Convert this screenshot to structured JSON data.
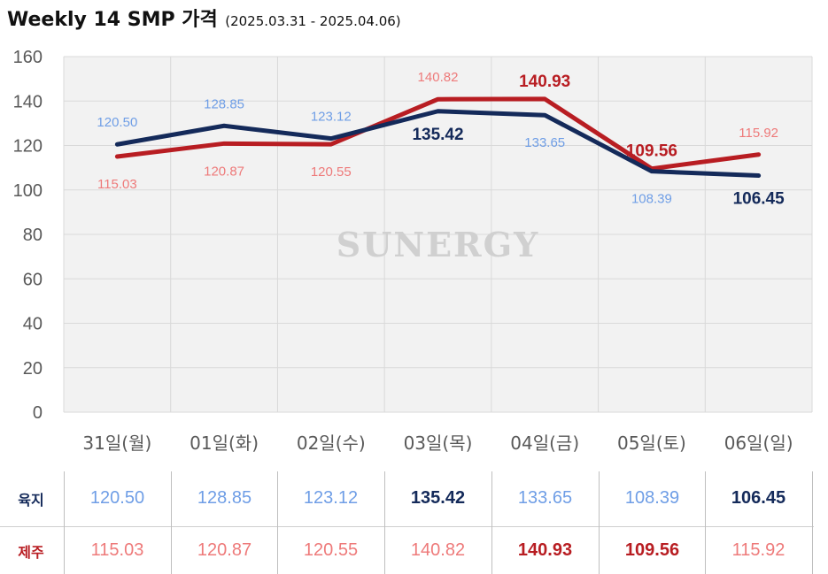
{
  "header": {
    "title": "Weekly 14 SMP 가격",
    "subtitle": "(2025.03.31 - 2025.04.06)"
  },
  "watermark": "SUNERGY",
  "colors": {
    "inland": "#142a5a",
    "inland_label": "#6f9ee6",
    "jeju": "#b81d22",
    "jeju_label": "#ee7a7a",
    "grid": "#d9d9d9",
    "axis_text": "#595959",
    "plot_bg": "#f2f2f2"
  },
  "chart_data": {
    "type": "line",
    "categories": [
      "31일(월)",
      "01일(화)",
      "02일(수)",
      "03일(목)",
      "04일(금)",
      "05일(토)",
      "06일(일)"
    ],
    "ylim": [
      0,
      160
    ],
    "yticks": [
      "0",
      "20",
      "40",
      "60",
      "80",
      "100",
      "120",
      "140",
      "160"
    ],
    "grid": true,
    "series": [
      {
        "name": "육지",
        "values": [
          120.5,
          128.85,
          123.12,
          135.42,
          133.65,
          108.39,
          106.45
        ],
        "labels": [
          "120.50",
          "128.85",
          "123.12",
          "135.42",
          "133.65",
          "108.39",
          "106.45"
        ],
        "highlight": [
          false,
          false,
          false,
          true,
          false,
          false,
          true
        ],
        "label_side": [
          "above",
          "above",
          "above",
          "below",
          "below",
          "below",
          "below"
        ]
      },
      {
        "name": "제주",
        "values": [
          115.03,
          120.87,
          120.55,
          140.82,
          140.93,
          109.56,
          115.92
        ],
        "labels": [
          "115.03",
          "120.87",
          "120.55",
          "140.82",
          "140.93",
          "109.56",
          "115.92"
        ],
        "highlight": [
          false,
          false,
          false,
          false,
          true,
          true,
          false
        ],
        "label_side": [
          "below",
          "below",
          "below",
          "above",
          "above",
          "above",
          "above"
        ]
      }
    ]
  }
}
